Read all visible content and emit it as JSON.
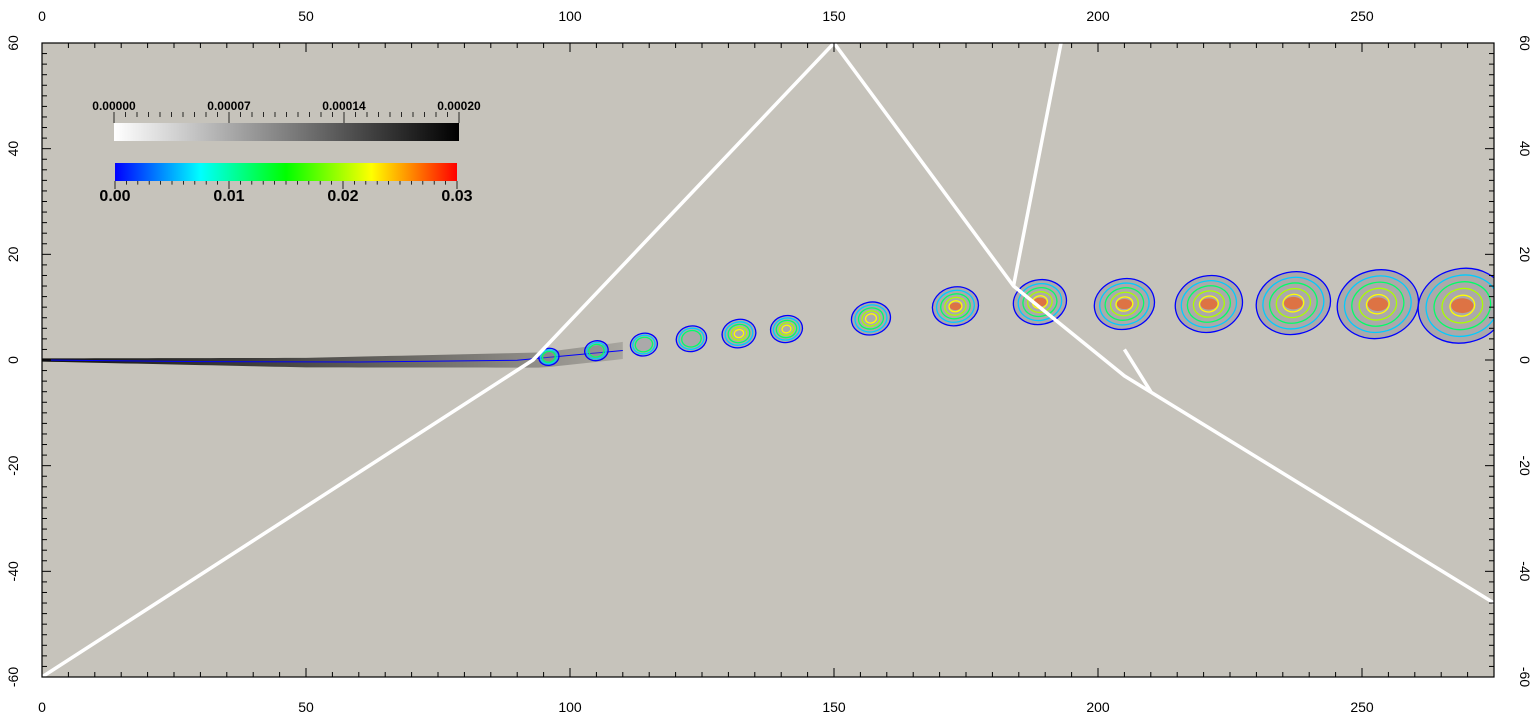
{
  "chart_data": {
    "type": "heatmap",
    "title": "",
    "xlabel": "",
    "ylabel": "",
    "xlim": [
      0,
      275
    ],
    "ylim": [
      -60,
      60
    ],
    "x_ticks": [
      "0",
      "50",
      "100",
      "150",
      "200",
      "250"
    ],
    "y_ticks": [
      "-60",
      "-40",
      "-20",
      "0",
      "20",
      "40",
      "60"
    ],
    "background_color": "#c6c3bb",
    "colorbars": [
      {
        "name": "grayscale",
        "ticks": [
          "0.00000",
          "0.00007",
          "0.00014",
          "0.00020"
        ],
        "colors": [
          "#ffffff",
          "#000000"
        ]
      },
      {
        "name": "rainbow",
        "ticks": [
          "0.00",
          "0.01",
          "0.02",
          "0.03"
        ],
        "colors": [
          "#0000ff",
          "#00ffff",
          "#00ff00",
          "#ffff00",
          "#ff0000"
        ]
      }
    ],
    "shock_lines": [
      [
        [
          0,
          -60
        ],
        [
          93,
          0
        ],
        [
          150,
          60
        ],
        [
          184,
          14
        ],
        [
          205,
          -3
        ],
        [
          275,
          -46
        ]
      ],
      [
        [
          184,
          14
        ],
        [
          193,
          60
        ]
      ],
      [
        [
          205,
          2
        ],
        [
          210,
          -6
        ]
      ]
    ],
    "jet_centerline": [
      [
        0,
        0
      ],
      [
        50,
        -0.5
      ],
      [
        95,
        0
      ],
      [
        120,
        3
      ],
      [
        150,
        6
      ],
      [
        180,
        10
      ],
      [
        210,
        9
      ],
      [
        240,
        9
      ],
      [
        275,
        8
      ]
    ]
  }
}
